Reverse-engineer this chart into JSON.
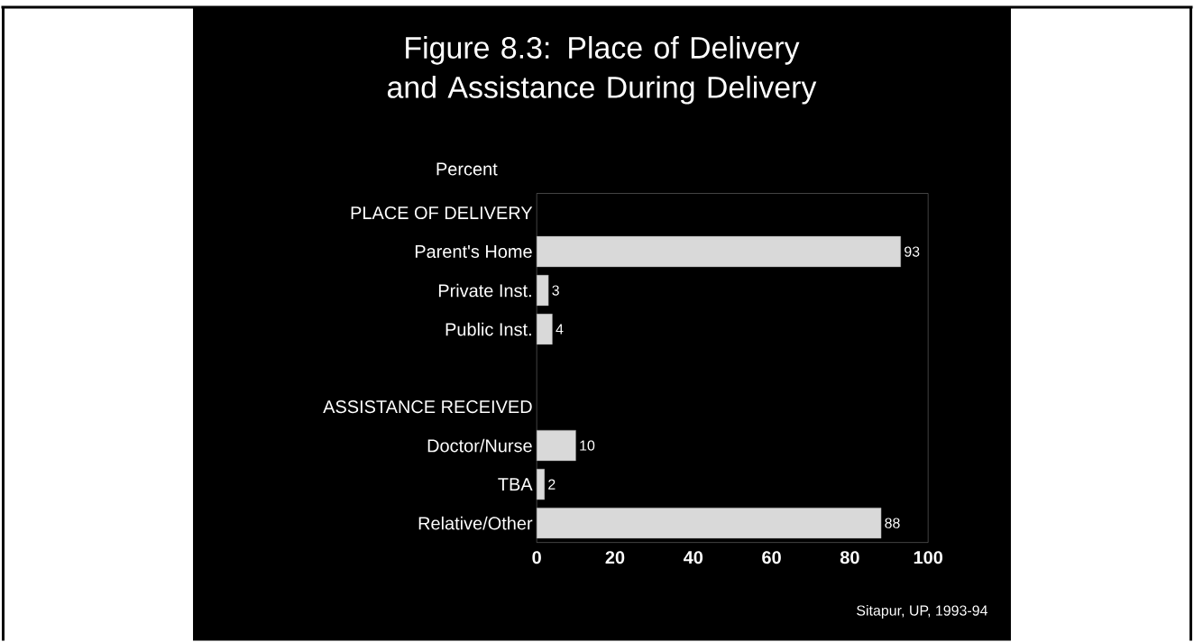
{
  "chart_data": {
    "type": "bar",
    "orientation": "horizontal",
    "title": "Figure 8.3: Place of Delivery and Assistance During Delivery",
    "xlabel": "Percent",
    "categories": [
      "PLACE OF DELIVERY",
      "Parent's Home",
      "Private Inst.",
      "Public Inst.",
      null,
      "ASSISTANCE RECEIVED",
      "Doctor/Nurse",
      "TBA",
      "Relative/Other"
    ],
    "values": [
      null,
      93,
      3,
      4,
      null,
      null,
      10,
      2,
      88
    ],
    "color": "#d9d9d9",
    "xlim": [
      0,
      100
    ],
    "xticks": [
      0,
      20,
      40,
      60,
      80,
      100
    ],
    "data_labels": true,
    "annotations": [
      "Sitapur, UP, 1993-94"
    ]
  }
}
